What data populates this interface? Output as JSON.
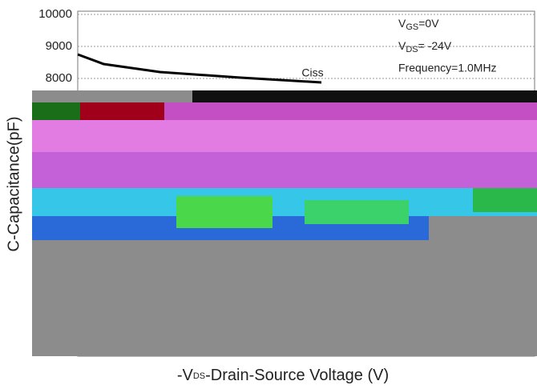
{
  "chart_data": {
    "type": "line",
    "y_label": "C-Capacitance(pF)",
    "x_label": [
      "-V",
      "DS",
      "-Drain-Source Voltage (V)"
    ],
    "annotations": [
      [
        "V",
        "GS",
        "=0V"
      ],
      [
        "V",
        "DS",
        "= -24V"
      ],
      [
        "Frequency=1.0MHz"
      ]
    ],
    "series": [
      {
        "name": "Ciss",
        "color": "#000000",
        "x": [
          0,
          1.7,
          5.4,
          10.7,
          16
        ],
        "values": [
          8750,
          8450,
          8200,
          8025,
          7875
        ]
      }
    ],
    "xlim": [
      0,
      30
    ],
    "ylim": [
      0,
      10000
    ],
    "yticks": [
      8000,
      9000,
      10000
    ],
    "grid": true
  }
}
